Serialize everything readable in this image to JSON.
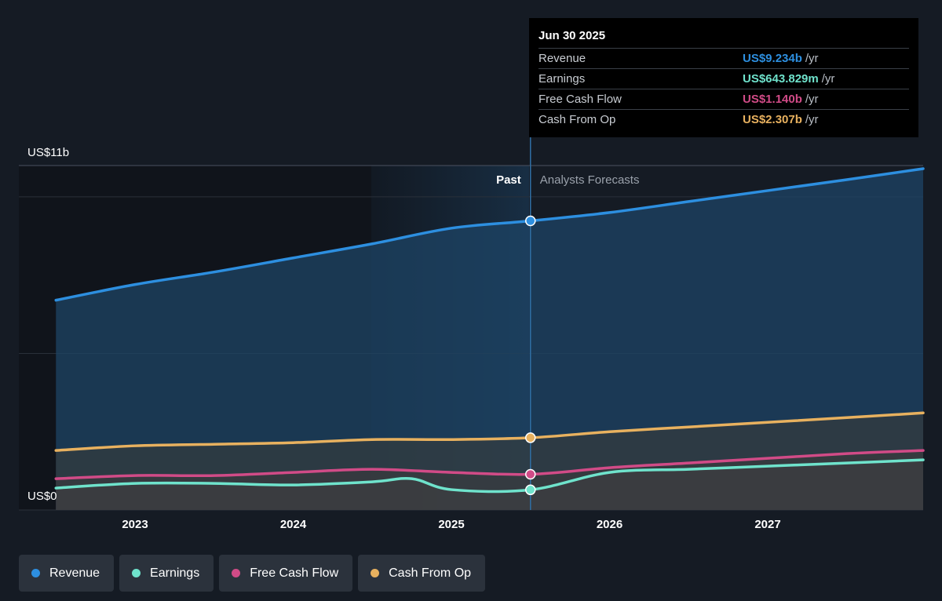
{
  "chart_data": {
    "type": "area",
    "y_axis_top_label": "US$11b",
    "y_axis_bottom_label": "US$0",
    "ylim": [
      0,
      11
    ],
    "x_ticks": [
      2023,
      2024,
      2025,
      2026,
      2027
    ],
    "past_label": "Past",
    "forecast_label": "Analysts Forecasts",
    "divider_x": 2025.5,
    "series": [
      {
        "name": "Revenue",
        "color": "#2d8fe0",
        "points": [
          [
            2022.5,
            6.7
          ],
          [
            2023.0,
            7.2
          ],
          [
            2023.5,
            7.6
          ],
          [
            2024.0,
            8.05
          ],
          [
            2024.5,
            8.5
          ],
          [
            2025.0,
            9.0
          ],
          [
            2025.5,
            9.234
          ],
          [
            2026.0,
            9.5
          ],
          [
            2026.5,
            9.85
          ],
          [
            2027.0,
            10.2
          ],
          [
            2027.5,
            10.55
          ],
          [
            2028.0,
            10.9
          ]
        ]
      },
      {
        "name": "Earnings",
        "color": "#6fe3cc",
        "points": [
          [
            2022.5,
            0.7
          ],
          [
            2023.0,
            0.85
          ],
          [
            2023.5,
            0.85
          ],
          [
            2024.0,
            0.8
          ],
          [
            2024.5,
            0.9
          ],
          [
            2024.75,
            1.0
          ],
          [
            2025.0,
            0.65
          ],
          [
            2025.5,
            0.644
          ],
          [
            2026.0,
            1.2
          ],
          [
            2026.5,
            1.3
          ],
          [
            2027.0,
            1.4
          ],
          [
            2027.5,
            1.5
          ],
          [
            2028.0,
            1.6
          ]
        ]
      },
      {
        "name": "Free Cash Flow",
        "color": "#d14b87",
        "points": [
          [
            2022.5,
            1.0
          ],
          [
            2023.0,
            1.1
          ],
          [
            2023.5,
            1.1
          ],
          [
            2024.0,
            1.2
          ],
          [
            2024.5,
            1.3
          ],
          [
            2025.0,
            1.2
          ],
          [
            2025.5,
            1.14
          ],
          [
            2026.0,
            1.35
          ],
          [
            2026.5,
            1.5
          ],
          [
            2027.0,
            1.65
          ],
          [
            2027.5,
            1.8
          ],
          [
            2028.0,
            1.9
          ]
        ]
      },
      {
        "name": "Cash From Op",
        "color": "#e8b15f",
        "points": [
          [
            2022.5,
            1.9
          ],
          [
            2023.0,
            2.05
          ],
          [
            2023.5,
            2.1
          ],
          [
            2024.0,
            2.15
          ],
          [
            2024.5,
            2.25
          ],
          [
            2025.0,
            2.25
          ],
          [
            2025.5,
            2.307
          ],
          [
            2026.0,
            2.5
          ],
          [
            2026.5,
            2.65
          ],
          [
            2027.0,
            2.8
          ],
          [
            2027.5,
            2.95
          ],
          [
            2028.0,
            3.1
          ]
        ]
      }
    ],
    "tooltip": {
      "date": "Jun 30 2025",
      "rows": [
        {
          "label": "Revenue",
          "value": "US$9.234b",
          "unit": "/yr",
          "color": "#2d8fe0"
        },
        {
          "label": "Earnings",
          "value": "US$643.829m",
          "unit": "/yr",
          "color": "#6fe3cc"
        },
        {
          "label": "Free Cash Flow",
          "value": "US$1.140b",
          "unit": "/yr",
          "color": "#d14b87"
        },
        {
          "label": "Cash From Op",
          "value": "US$2.307b",
          "unit": "/yr",
          "color": "#e8b15f"
        }
      ]
    },
    "legend": [
      {
        "label": "Revenue",
        "color": "#2d8fe0"
      },
      {
        "label": "Earnings",
        "color": "#6fe3cc"
      },
      {
        "label": "Free Cash Flow",
        "color": "#d14b87"
      },
      {
        "label": "Cash From Op",
        "color": "#e8b15f"
      }
    ]
  }
}
